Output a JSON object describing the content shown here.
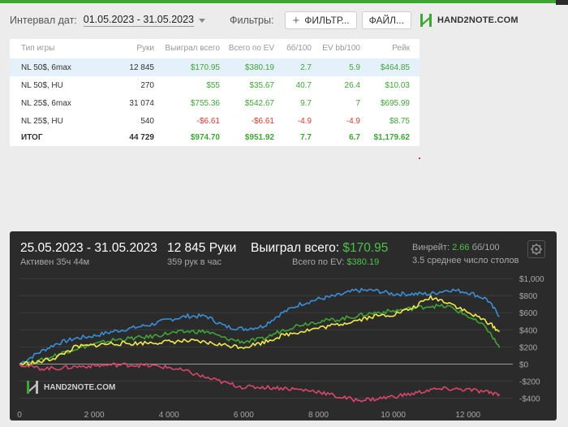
{
  "filters": {
    "date_label": "Интервал дат:",
    "date_range": "01.05.2023 - 31.05.2023",
    "filters_label": "Фильтры:",
    "filter_button": "ФИЛЬТР...",
    "file_button": "ФАЙЛ...",
    "logo_text": "HAND2NOTE.COM"
  },
  "stats": {
    "headers": [
      "Тип игры",
      "Руки",
      "Выиграл всего",
      "Всего по EV",
      "бб/100",
      "EV bb/100",
      "Рейк"
    ],
    "rows": [
      {
        "cells": [
          "NL 50$, 6max",
          "12 845",
          "$170.95",
          "$380.19",
          "2.7",
          "5.9",
          "$464.85"
        ],
        "sign": [
          "",
          "",
          "pos",
          "pos",
          "pos",
          "pos",
          "pos"
        ]
      },
      {
        "cells": [
          "NL 50$, HU",
          "270",
          "$55",
          "$35.67",
          "40.7",
          "26.4",
          "$10.03"
        ],
        "sign": [
          "",
          "",
          "pos",
          "pos",
          "pos",
          "pos",
          "pos"
        ]
      },
      {
        "cells": [
          "NL 25$, 6max",
          "31 074",
          "$755.36",
          "$542.67",
          "9.7",
          "7",
          "$695.99"
        ],
        "sign": [
          "",
          "",
          "pos",
          "pos",
          "pos",
          "pos",
          "pos"
        ]
      },
      {
        "cells": [
          "NL 25$, HU",
          "540",
          "-$6.61",
          "-$6.61",
          "-4.9",
          "-4.9",
          "$8.75"
        ],
        "sign": [
          "",
          "",
          "neg",
          "neg",
          "neg",
          "neg",
          "pos"
        ]
      }
    ],
    "total": {
      "cells": [
        "ИТОГ",
        "44 729",
        "$974.70",
        "$951.92",
        "7.7",
        "6.7",
        "$1,179.62"
      ],
      "sign": [
        "",
        "",
        "pos",
        "pos",
        "pos",
        "pos",
        "pos"
      ]
    }
  },
  "summary": {
    "date_range": "25.05.2023 - 31.05.2023",
    "active": "Активен 35ч 44м",
    "hands": "12 845 Руки",
    "hands_per_hour": "359 рук в час",
    "won_label": "Выиграл всего:",
    "won_value": "$170.95",
    "ev_label": "Всего по EV:",
    "ev_value": "$380.19",
    "winrate_label": "Винрейт:",
    "winrate_value": "2.66",
    "winrate_unit": "бб/100",
    "avg_tables": "3.5 среднее число столов"
  },
  "colors": {
    "green": "#3fa535",
    "red": "#d9392b",
    "blue": "#3a8fd8",
    "yellow": "#f2e94e",
    "pink": "#d9456b",
    "panel": "#2b2b2b"
  },
  "chart_data": {
    "type": "line",
    "ylim": [
      -480,
      1020
    ],
    "xlim": [
      0,
      13200
    ],
    "y_ticks": [
      {
        "v": 1000,
        "label": "$1,000"
      },
      {
        "v": 800,
        "label": "$800"
      },
      {
        "v": 600,
        "label": "$600"
      },
      {
        "v": 400,
        "label": "$400"
      },
      {
        "v": 200,
        "label": "$200"
      },
      {
        "v": 0,
        "label": "$0"
      },
      {
        "v": -200,
        "label": "-$200"
      },
      {
        "v": -400,
        "label": "-$400"
      }
    ],
    "x_ticks": [
      {
        "v": 0,
        "label": "0"
      },
      {
        "v": 2000,
        "label": "2 000"
      },
      {
        "v": 4000,
        "label": "4 000"
      },
      {
        "v": 6000,
        "label": "6 000"
      },
      {
        "v": 8000,
        "label": "8 000"
      },
      {
        "v": 10000,
        "label": "10 000"
      },
      {
        "v": 12000,
        "label": "12 000"
      }
    ],
    "x": [
      0,
      500,
      1000,
      1500,
      2000,
      2500,
      3000,
      3500,
      4000,
      4500,
      5000,
      5500,
      6000,
      6500,
      7000,
      7500,
      8000,
      8500,
      9000,
      9500,
      10000,
      10500,
      11000,
      11500,
      12000,
      12500,
      12845
    ],
    "series": [
      {
        "color": "#3a8fd8",
        "values": [
          0,
          130,
          240,
          300,
          330,
          380,
          420,
          460,
          520,
          560,
          560,
          440,
          410,
          440,
          590,
          700,
          760,
          800,
          860,
          860,
          820,
          820,
          820,
          870,
          840,
          760,
          560
        ]
      },
      {
        "color": "#3fa535",
        "values": [
          0,
          30,
          110,
          180,
          230,
          280,
          300,
          320,
          360,
          380,
          380,
          300,
          260,
          290,
          390,
          460,
          500,
          520,
          560,
          600,
          620,
          650,
          680,
          670,
          560,
          420,
          190
        ]
      },
      {
        "color": "#f2e94e",
        "values": [
          0,
          20,
          80,
          200,
          220,
          240,
          240,
          250,
          260,
          270,
          250,
          220,
          200,
          250,
          330,
          380,
          420,
          460,
          510,
          560,
          580,
          650,
          780,
          720,
          600,
          500,
          380
        ]
      },
      {
        "color": "#d9456b",
        "values": [
          0,
          -50,
          -50,
          -30,
          -20,
          -10,
          -10,
          -20,
          -40,
          -90,
          -160,
          -220,
          -270,
          -270,
          -280,
          -300,
          -320,
          -380,
          -420,
          -410,
          -380,
          -350,
          -300,
          -290,
          -300,
          -330,
          -350
        ]
      }
    ]
  }
}
